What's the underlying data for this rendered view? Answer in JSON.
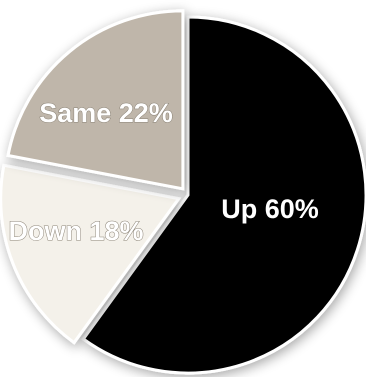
{
  "chart_data": {
    "type": "pie",
    "slices": [
      {
        "label": "Up 60%",
        "value": 60,
        "color": "#000000"
      },
      {
        "label": "Down 18%",
        "value": 18,
        "color": "#f4f1ea"
      },
      {
        "label": "Same 22%",
        "value": 22,
        "color": "#bfb6aa"
      }
    ],
    "legend": "none",
    "title": ""
  }
}
